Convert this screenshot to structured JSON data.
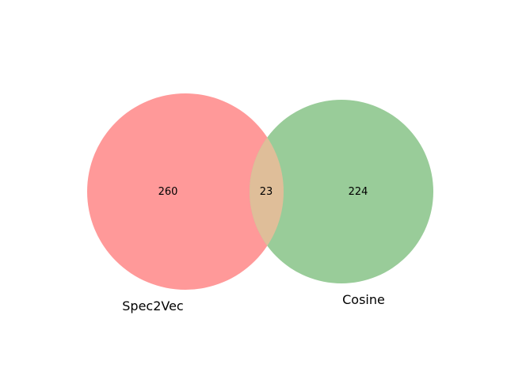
{
  "venn": {
    "sets": [
      {
        "label": "Spec2Vec",
        "only_count": "260",
        "color": "#ff9999"
      },
      {
        "label": "Cosine",
        "only_count": "224",
        "color": "#99cc99"
      }
    ],
    "intersection_count": "23",
    "intersection_color": "#dfbe99"
  }
}
